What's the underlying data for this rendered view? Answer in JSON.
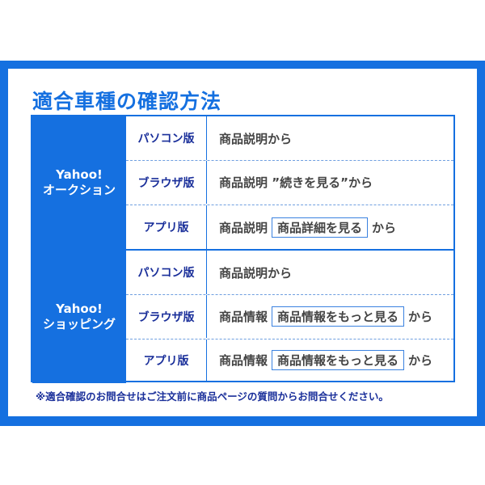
{
  "title": "適合車種の確認方法",
  "groups": [
    {
      "site_line1": "Yahoo!",
      "site_line2": "オークション",
      "rows": [
        {
          "platform": "パソコン版",
          "prefix": "商品説明から",
          "button": null,
          "suffix": null
        },
        {
          "platform": "ブラウザ版",
          "prefix": "商品説明 ”続きを見る”から",
          "button": null,
          "suffix": null
        },
        {
          "platform": "アプリ版",
          "prefix": "商品説明",
          "button": "商品詳細を見る",
          "suffix": "から"
        }
      ]
    },
    {
      "site_line1": "Yahoo!",
      "site_line2": "ショッピング",
      "rows": [
        {
          "platform": "パソコン版",
          "prefix": "商品説明から",
          "button": null,
          "suffix": null
        },
        {
          "platform": "ブラウザ版",
          "prefix": "商品情報",
          "button": "商品情報をもっと見る",
          "suffix": "から"
        },
        {
          "platform": "アプリ版",
          "prefix": "商品情報",
          "button": "商品情報をもっと見る",
          "suffix": "から"
        }
      ]
    }
  ],
  "note": "※適合確認のお問合せはご注文前に商品ページの質問からお問合せください。",
  "colors": {
    "accent": "#1570e0",
    "label": "#1a2f9a",
    "text": "#444444"
  }
}
